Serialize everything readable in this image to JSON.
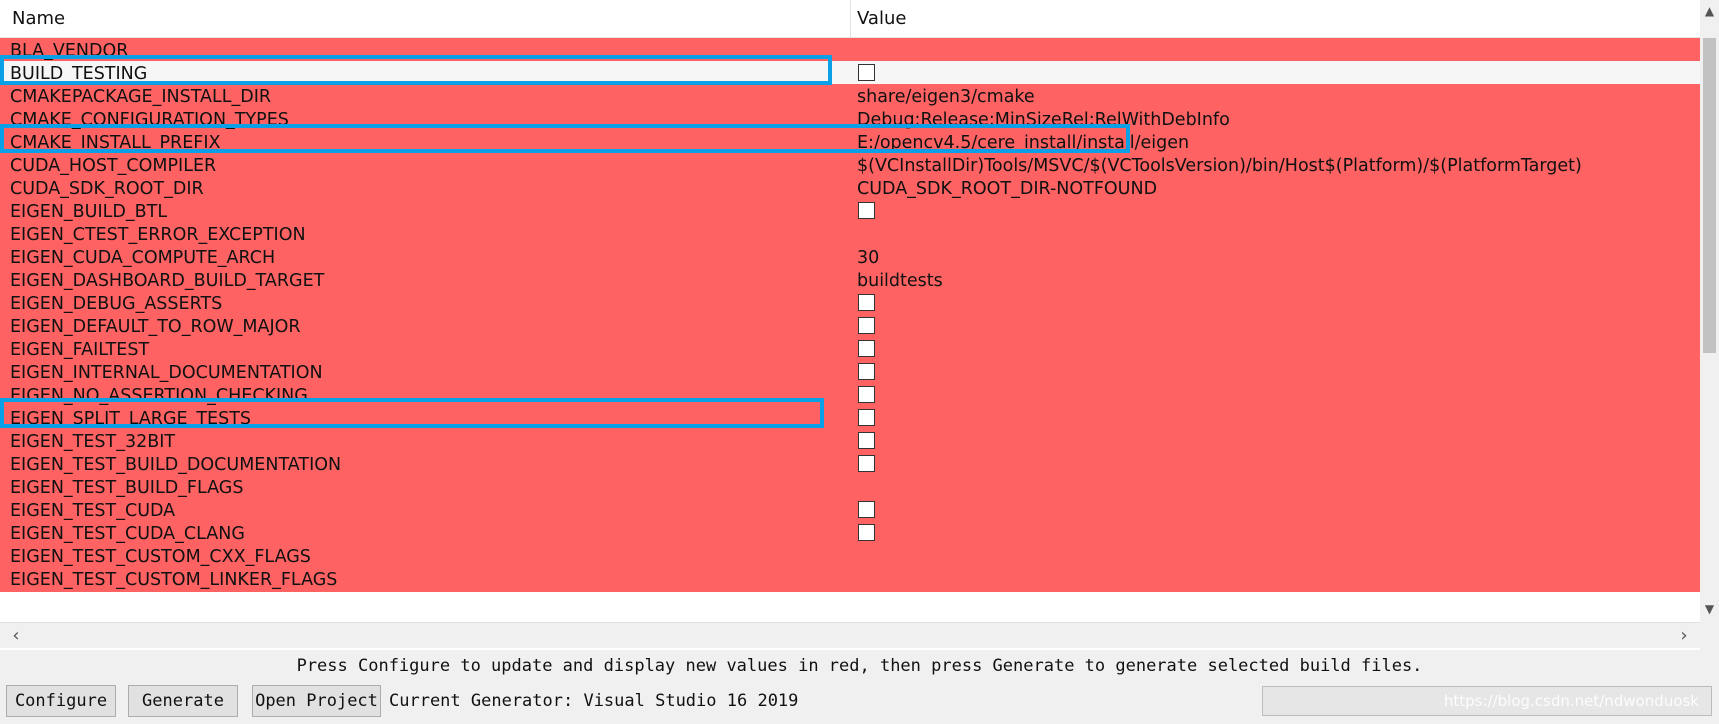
{
  "table": {
    "columns": {
      "name": "Name",
      "value": "Value"
    },
    "rows": [
      {
        "name": "BLA_VENDOR",
        "value": "",
        "checkbox": false,
        "white": false
      },
      {
        "name": "BUILD_TESTING",
        "value": "",
        "checkbox": true,
        "white": true
      },
      {
        "name": "CMAKEPACKAGE_INSTALL_DIR",
        "value": "share/eigen3/cmake",
        "checkbox": false,
        "white": false
      },
      {
        "name": "CMAKE_CONFIGURATION_TYPES",
        "value": "Debug;Release;MinSizeRel;RelWithDebInfo",
        "checkbox": false,
        "white": false
      },
      {
        "name": "CMAKE_INSTALL_PREFIX",
        "value": "E:/opencv4.5/cere_install/install/eigen",
        "checkbox": false,
        "white": false
      },
      {
        "name": "CUDA_HOST_COMPILER",
        "value": "$(VCInstallDir)Tools/MSVC/$(VCToolsVersion)/bin/Host$(Platform)/$(PlatformTarget)",
        "checkbox": false,
        "white": false
      },
      {
        "name": "CUDA_SDK_ROOT_DIR",
        "value": "CUDA_SDK_ROOT_DIR-NOTFOUND",
        "checkbox": false,
        "white": false
      },
      {
        "name": "EIGEN_BUILD_BTL",
        "value": "",
        "checkbox": true,
        "white": false
      },
      {
        "name": "EIGEN_CTEST_ERROR_EXCEPTION",
        "value": "",
        "checkbox": false,
        "white": false
      },
      {
        "name": "EIGEN_CUDA_COMPUTE_ARCH",
        "value": "30",
        "checkbox": false,
        "white": false
      },
      {
        "name": "EIGEN_DASHBOARD_BUILD_TARGET",
        "value": "buildtests",
        "checkbox": false,
        "white": false
      },
      {
        "name": "EIGEN_DEBUG_ASSERTS",
        "value": "",
        "checkbox": true,
        "white": false
      },
      {
        "name": "EIGEN_DEFAULT_TO_ROW_MAJOR",
        "value": "",
        "checkbox": true,
        "white": false
      },
      {
        "name": "EIGEN_FAILTEST",
        "value": "",
        "checkbox": true,
        "white": false
      },
      {
        "name": "EIGEN_INTERNAL_DOCUMENTATION",
        "value": "",
        "checkbox": true,
        "white": false
      },
      {
        "name": "EIGEN_NO_ASSERTION_CHECKING",
        "value": "",
        "checkbox": true,
        "white": false
      },
      {
        "name": "EIGEN_SPLIT_LARGE_TESTS",
        "value": "",
        "checkbox": true,
        "white": false
      },
      {
        "name": "EIGEN_TEST_32BIT",
        "value": "",
        "checkbox": true,
        "white": false
      },
      {
        "name": "EIGEN_TEST_BUILD_DOCUMENTATION",
        "value": "",
        "checkbox": true,
        "white": false
      },
      {
        "name": "EIGEN_TEST_BUILD_FLAGS",
        "value": "",
        "checkbox": false,
        "white": false
      },
      {
        "name": "EIGEN_TEST_CUDA",
        "value": "",
        "checkbox": true,
        "white": false
      },
      {
        "name": "EIGEN_TEST_CUDA_CLANG",
        "value": "",
        "checkbox": true,
        "white": false
      },
      {
        "name": "EIGEN_TEST_CUSTOM_CXX_FLAGS",
        "value": "",
        "checkbox": false,
        "white": false
      },
      {
        "name": "EIGEN_TEST_CUSTOM_LINKER_FLAGS",
        "value": "",
        "checkbox": false,
        "white": false
      }
    ]
  },
  "status_text": "Press Configure to update and display new values in red, then press Generate to generate selected build files.",
  "buttons": {
    "configure": "Configure",
    "generate": "Generate",
    "open_project": "Open Project"
  },
  "current_generator": "Current Generator: Visual Studio 16 2019",
  "watermark": "https://blog.csdn.net/ndwonduosk",
  "icons": {
    "scroll_up": "chevron-up-icon",
    "scroll_down": "chevron-down-icon",
    "scroll_left": "chevron-left-icon",
    "scroll_right": "chevron-right-icon"
  },
  "colors": {
    "modified_row": "#ff6262",
    "highlight_box": "#0aa0e8"
  }
}
